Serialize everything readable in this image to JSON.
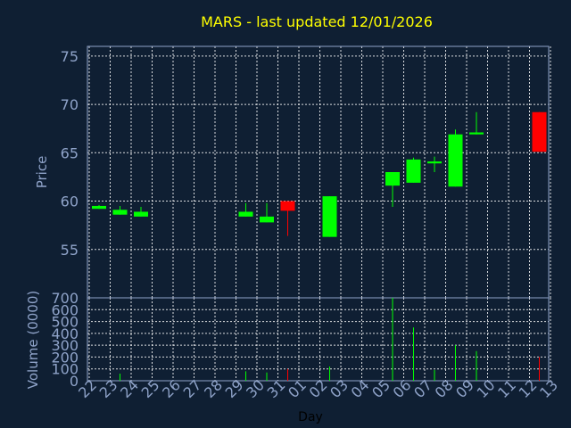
{
  "chart_data": {
    "type": "candlestick",
    "title": "MARS - last updated 12/01/2026",
    "xlabel": "Day",
    "ylabel": "Price",
    "volume_ylabel": "Volume (0000)",
    "ylim": [
      50,
      76
    ],
    "yticks": [
      55,
      60,
      65,
      70,
      75
    ],
    "volume_ylim": [
      0,
      700
    ],
    "volume_yticks": [
      0,
      100,
      200,
      300,
      400,
      500,
      600,
      700
    ],
    "x_tick_labels": [
      "22",
      "23",
      "24",
      "25",
      "26",
      "27",
      "28",
      "29",
      "30",
      "31",
      "01",
      "02",
      "03",
      "04",
      "05",
      "06",
      "07",
      "08",
      "09",
      "10",
      "11",
      "12",
      "13"
    ],
    "grid": true,
    "colors": {
      "up": "#00ff00",
      "down": "#ff0000",
      "title": "#ffff00",
      "axis_text": "#8fa3c9",
      "background": "#0f1f33"
    },
    "candles": [
      {
        "day": "22",
        "open": 59.2,
        "high": 59.6,
        "low": 59.2,
        "close": 59.5,
        "volume": 0
      },
      {
        "day": "23",
        "open": 58.6,
        "high": 59.5,
        "low": 58.6,
        "close": 59.1,
        "volume": 60
      },
      {
        "day": "24",
        "open": 58.4,
        "high": 59.4,
        "low": 58.4,
        "close": 58.9,
        "volume": 0
      },
      {
        "day": "29",
        "open": 58.4,
        "high": 59.8,
        "low": 58.4,
        "close": 58.9,
        "volume": 80
      },
      {
        "day": "30",
        "open": 57.8,
        "high": 59.8,
        "low": 57.8,
        "close": 58.4,
        "volume": 70
      },
      {
        "day": "31",
        "open": 60.0,
        "high": 60.0,
        "low": 56.4,
        "close": 59.0,
        "volume": 100
      },
      {
        "day": "02",
        "open": 56.3,
        "high": 60.5,
        "low": 56.3,
        "close": 60.5,
        "volume": 120
      },
      {
        "day": "05",
        "open": 61.6,
        "high": 63.0,
        "low": 59.4,
        "close": 63.0,
        "volume": 700
      },
      {
        "day": "06",
        "open": 61.9,
        "high": 64.5,
        "low": 61.9,
        "close": 64.3,
        "volume": 450
      },
      {
        "day": "07",
        "open": 63.9,
        "high": 64.6,
        "low": 63.0,
        "close": 64.1,
        "volume": 90
      },
      {
        "day": "08",
        "open": 61.5,
        "high": 67.4,
        "low": 61.5,
        "close": 66.9,
        "volume": 300
      },
      {
        "day": "09",
        "open": 66.9,
        "high": 69.2,
        "low": 66.9,
        "close": 67.1,
        "volume": 250
      },
      {
        "day": "12",
        "open": 69.2,
        "high": 69.2,
        "low": 65.1,
        "close": 65.1,
        "volume": 200
      }
    ]
  }
}
